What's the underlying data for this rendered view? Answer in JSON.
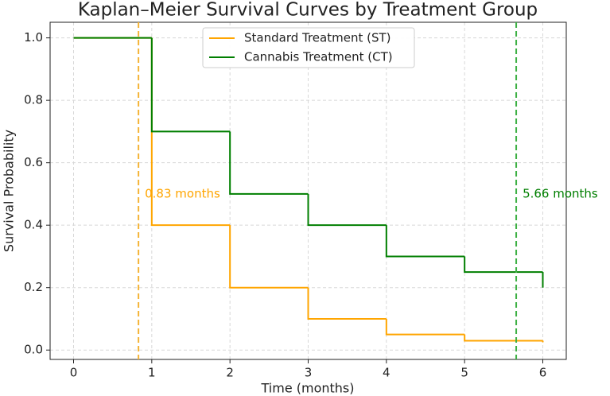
{
  "chart_data": {
    "type": "step",
    "title": "Kaplan–Meier Survival Curves by Treatment Group",
    "x_label": "Time (months)",
    "y_label": "Survival Probability",
    "x": [
      0,
      1,
      2,
      3,
      4,
      5,
      6
    ],
    "series": [
      {
        "name": "Standard Treatment (ST)",
        "color": "#FFA500",
        "values": [
          1.0,
          0.4,
          0.2,
          0.1,
          0.05,
          0.03,
          0.025
        ]
      },
      {
        "name": "Cannabis Treatment (CT)",
        "color": "#007F00",
        "values": [
          1.0,
          0.7,
          0.5,
          0.4,
          0.3,
          0.25,
          0.2
        ]
      }
    ],
    "annotations": [
      {
        "x": 0.83,
        "label": "0.83 months",
        "color": "#FFA500",
        "line_color": "#F5B335"
      },
      {
        "x": 5.66,
        "label": "5.66 months",
        "color": "#007F00",
        "line_color": "#3CB043"
      }
    ],
    "xlim": [
      -0.3,
      6.3
    ],
    "ylim": [
      -0.03,
      1.05
    ],
    "xticks": [
      0,
      1,
      2,
      3,
      4,
      5,
      6
    ],
    "yticks": [
      {
        "value": 0,
        "label": "0.0"
      },
      0.2,
      0.4,
      0.6,
      0.8,
      {
        "value": 1,
        "label": "1.0"
      }
    ],
    "grid": true,
    "legend": "upper center"
  }
}
